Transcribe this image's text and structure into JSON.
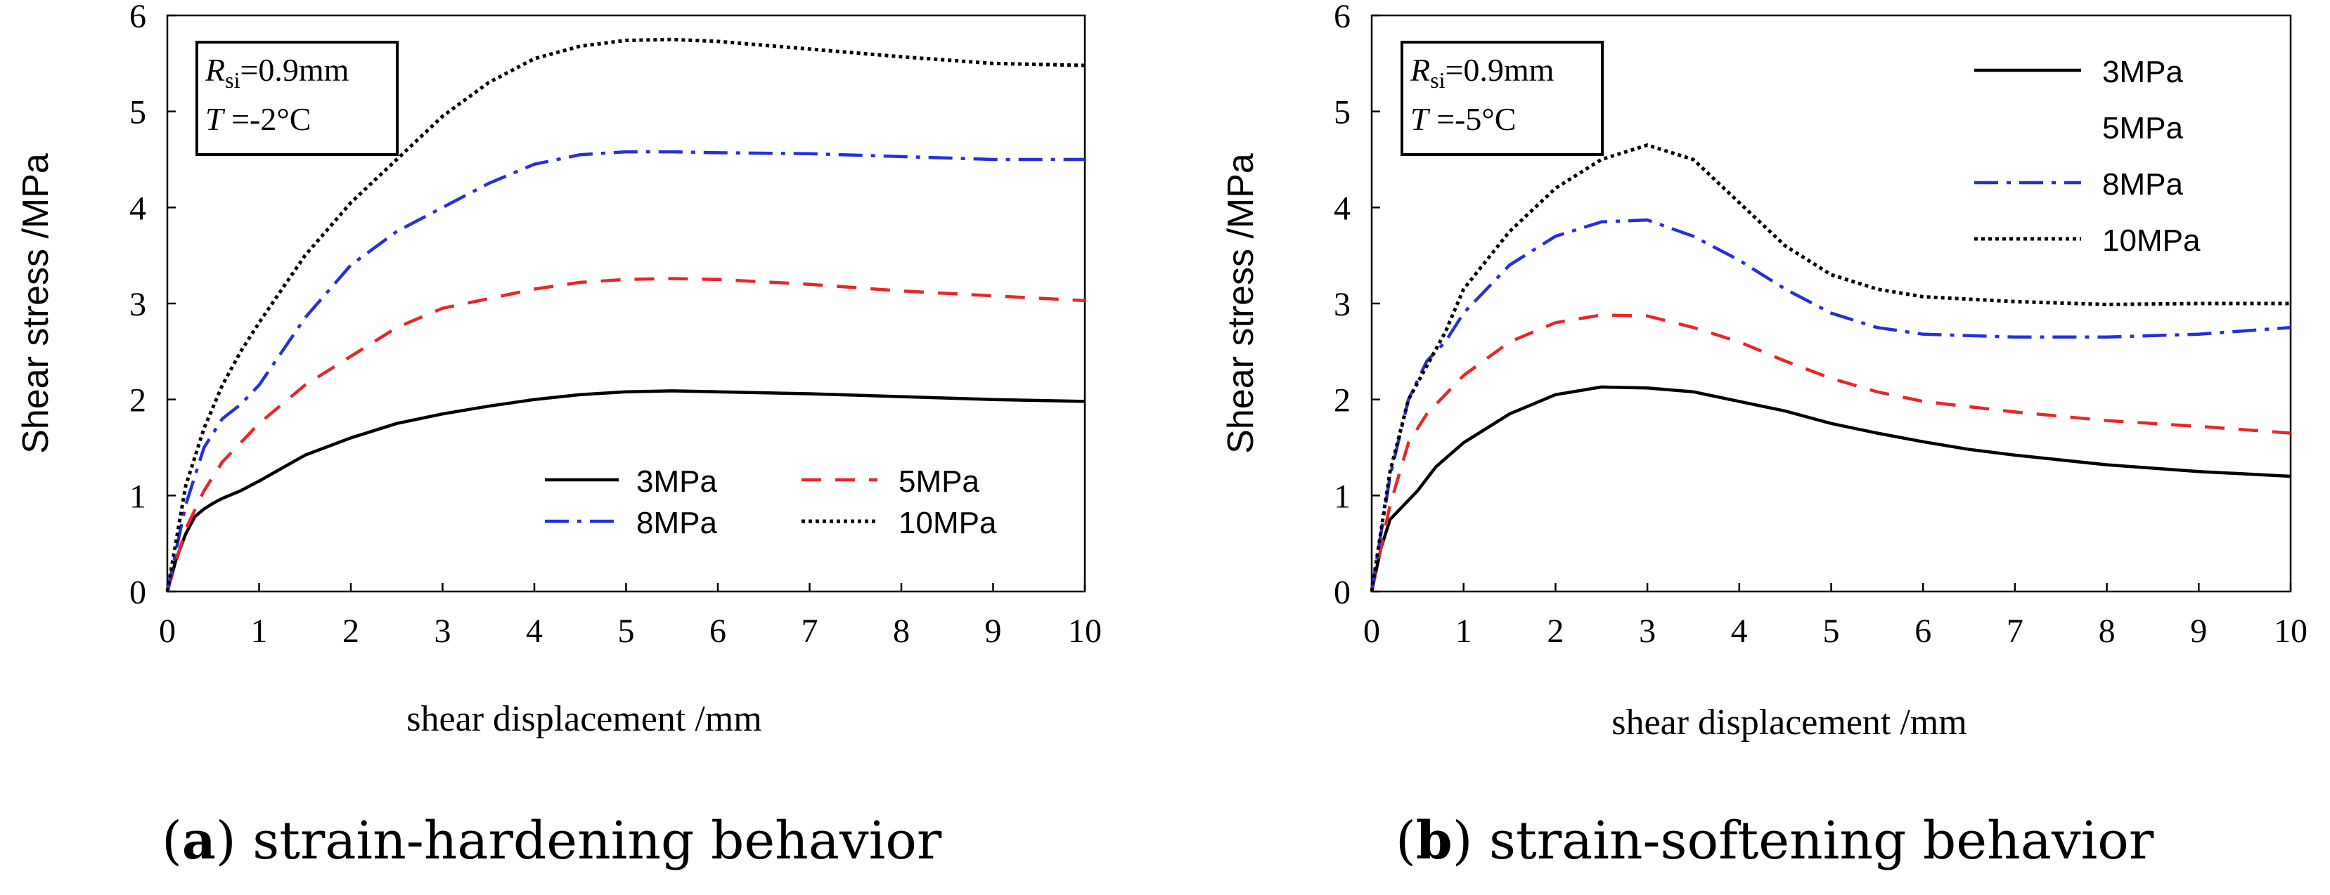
{
  "chart_data": [
    {
      "id": "a",
      "type": "line",
      "title": "",
      "xlabel": "shear displacement /mm",
      "ylabel": "Shear stress /MPa",
      "xlim": [
        0,
        10
      ],
      "ylim": [
        0,
        6
      ],
      "xticks": [
        "0",
        "1",
        "2",
        "3",
        "4",
        "5",
        "6",
        "7",
        "8",
        "9",
        "10"
      ],
      "yticks": [
        "0",
        "1",
        "2",
        "3",
        "4",
        "5",
        "6"
      ],
      "grid": false,
      "legend_position": "bottom-right",
      "legend_columns": 2,
      "caption_letter": "a",
      "caption_text": " strain-hardening behavior",
      "annotation": {
        "r_italic": "R",
        "r_sub": "si",
        "r_value": "=0.9mm",
        "t_italic": "T",
        "t_value": " =-2°C"
      },
      "series": [
        {
          "name": "3MPa",
          "color": "#000000",
          "dash": "none",
          "x": [
            0,
            0.1,
            0.2,
            0.3,
            0.4,
            0.5,
            0.6,
            0.8,
            1,
            1.5,
            2,
            2.5,
            3,
            3.5,
            4,
            4.5,
            5,
            5.5,
            6,
            7,
            8,
            9,
            10
          ],
          "y": [
            0,
            0.35,
            0.6,
            0.78,
            0.86,
            0.92,
            0.97,
            1.05,
            1.15,
            1.42,
            1.6,
            1.75,
            1.85,
            1.93,
            2.0,
            2.05,
            2.08,
            2.09,
            2.08,
            2.06,
            2.03,
            2.0,
            1.98
          ]
        },
        {
          "name": "5MPa",
          "color": "#e8262a",
          "dash": "28 20",
          "x": [
            0,
            0.2,
            0.4,
            0.6,
            0.8,
            1,
            1.5,
            2,
            2.5,
            3,
            3.5,
            4,
            4.5,
            5,
            5.5,
            6,
            7,
            8,
            9,
            10
          ],
          "y": [
            0,
            0.65,
            1.05,
            1.35,
            1.55,
            1.75,
            2.15,
            2.45,
            2.75,
            2.95,
            3.05,
            3.15,
            3.22,
            3.25,
            3.26,
            3.25,
            3.2,
            3.13,
            3.08,
            3.03
          ]
        },
        {
          "name": "8MPa",
          "color": "#2630d8",
          "dash": "34 12 6 12",
          "x": [
            0,
            0.2,
            0.4,
            0.6,
            0.8,
            1,
            1.5,
            2,
            2.5,
            3,
            3.5,
            4,
            4.5,
            5,
            5.5,
            6,
            7,
            8,
            9,
            10
          ],
          "y": [
            0,
            0.9,
            1.5,
            1.8,
            1.95,
            2.15,
            2.85,
            3.4,
            3.75,
            4.0,
            4.25,
            4.45,
            4.55,
            4.58,
            4.58,
            4.57,
            4.56,
            4.53,
            4.5,
            4.5
          ]
        },
        {
          "name": "10MPa",
          "color": "#000000",
          "dash": "5 5",
          "x": [
            0,
            0.2,
            0.4,
            0.6,
            0.8,
            1,
            1.5,
            2,
            2.5,
            3,
            3.5,
            4,
            4.5,
            5,
            5.5,
            6,
            7,
            8,
            9,
            10
          ],
          "y": [
            0,
            1.1,
            1.7,
            2.15,
            2.5,
            2.8,
            3.5,
            4.05,
            4.5,
            4.95,
            5.3,
            5.55,
            5.68,
            5.74,
            5.75,
            5.73,
            5.65,
            5.57,
            5.5,
            5.48
          ]
        }
      ]
    },
    {
      "id": "b",
      "type": "line",
      "title": "",
      "xlabel": "shear displacement /mm",
      "ylabel": "Shear stress /MPa",
      "xlim": [
        0,
        10
      ],
      "ylim": [
        0,
        6
      ],
      "xticks": [
        "0",
        "1",
        "2",
        "3",
        "4",
        "5",
        "6",
        "7",
        "8",
        "9",
        "10"
      ],
      "yticks": [
        "0",
        "1",
        "2",
        "3",
        "4",
        "5",
        "6"
      ],
      "grid": false,
      "legend_position": "top-right",
      "legend_columns": 1,
      "caption_letter": "b",
      "caption_text": " strain-softening behavior",
      "annotation": {
        "r_italic": "R",
        "r_sub": "si",
        "r_value": "=0.9mm",
        "t_italic": "T",
        "t_value": " =-5°C"
      },
      "series": [
        {
          "name": "3MPa",
          "color": "#000000",
          "dash": "none",
          "x": [
            0,
            0.1,
            0.2,
            0.3,
            0.5,
            0.7,
            1,
            1.5,
            2,
            2.5,
            3,
            3.5,
            4,
            4.5,
            5,
            5.5,
            6,
            6.5,
            7,
            8,
            9,
            10
          ],
          "y": [
            0,
            0.45,
            0.75,
            0.85,
            1.05,
            1.3,
            1.55,
            1.85,
            2.05,
            2.13,
            2.12,
            2.08,
            1.98,
            1.88,
            1.75,
            1.65,
            1.56,
            1.48,
            1.42,
            1.32,
            1.25,
            1.2
          ]
        },
        {
          "name": "5MPa",
          "color": "#e8262a",
          "dash": "28 20",
          "x": [
            0,
            0.2,
            0.4,
            0.6,
            0.8,
            1,
            1.5,
            2,
            2.5,
            3,
            3.5,
            4,
            4.5,
            5,
            5.5,
            6,
            7,
            8,
            9,
            10
          ],
          "y": [
            0,
            0.9,
            1.55,
            1.85,
            2.05,
            2.25,
            2.6,
            2.8,
            2.88,
            2.87,
            2.75,
            2.6,
            2.4,
            2.22,
            2.08,
            1.98,
            1.87,
            1.78,
            1.72,
            1.65
          ]
        },
        {
          "name": "8MPa",
          "color": "#2630d8",
          "dash": "34 12 6 12",
          "x": [
            0,
            0.2,
            0.4,
            0.6,
            0.8,
            1,
            1.5,
            2,
            2.5,
            3,
            3.5,
            4,
            4.5,
            5,
            5.5,
            6,
            7,
            8,
            9,
            10
          ],
          "y": [
            0,
            1.2,
            2.0,
            2.4,
            2.6,
            2.9,
            3.4,
            3.7,
            3.85,
            3.87,
            3.7,
            3.45,
            3.15,
            2.9,
            2.75,
            2.68,
            2.65,
            2.65,
            2.68,
            2.75
          ]
        },
        {
          "name": "10MPa",
          "color": "#000000",
          "dash": "5 5",
          "x": [
            0,
            0.2,
            0.4,
            0.6,
            0.8,
            1,
            1.5,
            2,
            2.5,
            3,
            3.5,
            4,
            4.5,
            5,
            5.5,
            6,
            7,
            8,
            9,
            10
          ],
          "y": [
            0,
            1.25,
            2.0,
            2.35,
            2.7,
            3.15,
            3.75,
            4.2,
            4.5,
            4.65,
            4.5,
            4.05,
            3.6,
            3.3,
            3.15,
            3.07,
            3.02,
            2.99,
            3.0,
            3.0
          ]
        }
      ]
    }
  ]
}
